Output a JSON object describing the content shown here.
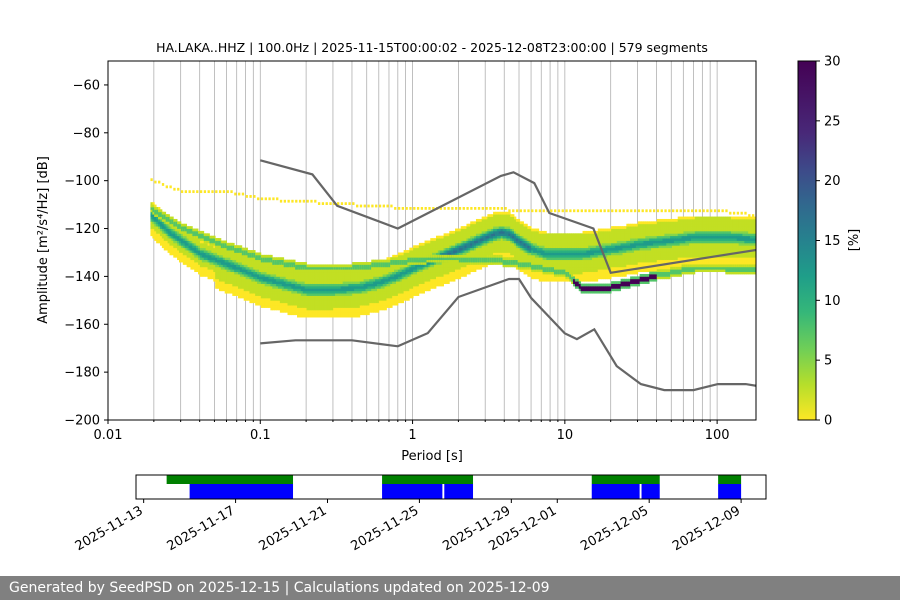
{
  "chart_data": [
    {
      "type": "heatmap",
      "title": "HA.LAKA..HHZ | 100.0Hz | 2025-11-15T00:00:02 - 2025-12-08T23:00:00 | 579 segments",
      "xlabel": "Period [s]",
      "ylabel": "Amplitude [m²/s⁴/Hz] [dB]",
      "x_scale": "log",
      "xlim": [
        0.01,
        180
      ],
      "ylim": [
        -200,
        -50
      ],
      "x_ticks": [
        0.01,
        0.1,
        1,
        10,
        100
      ],
      "x_tick_labels": [
        "0.01",
        "0.1",
        "1",
        "10",
        "100"
      ],
      "y_ticks": [
        -200,
        -180,
        -160,
        -140,
        -120,
        -100,
        -80,
        -60
      ],
      "y_tick_labels": [
        "−200",
        "−180",
        "−160",
        "−140",
        "−120",
        "−100",
        "−80",
        "−60"
      ],
      "grid": true,
      "colormap": "viridis_r",
      "colorbar": {
        "label": "[%]",
        "range": [
          0,
          30
        ],
        "ticks": [
          0,
          5,
          10,
          15,
          20,
          25,
          30
        ],
        "tick_labels": [
          "0",
          "5",
          "10",
          "15",
          "20",
          "25",
          "30"
        ]
      },
      "noise_models": [
        {
          "name": "NHNM",
          "color": "#666666",
          "x": [
            0.1,
            0.22,
            0.32,
            0.8,
            3.8,
            4.6,
            6.3,
            7.9,
            15.4,
            20,
            354.8
          ],
          "y": [
            -91.5,
            -97.4,
            -110.5,
            -120,
            -98,
            -96.5,
            -101,
            -113.5,
            -120,
            -138.5,
            -126
          ]
        },
        {
          "name": "NLNM",
          "color": "#666666",
          "x": [
            0.1,
            0.17,
            0.4,
            0.8,
            1.26,
            2,
            4.3,
            5,
            6,
            10,
            12,
            15.6,
            21.9,
            31.6,
            45,
            70,
            101,
            154,
            180
          ],
          "y": [
            -168,
            -166.7,
            -166.7,
            -169.2,
            -163.7,
            -148.6,
            -141.1,
            -141.1,
            -149,
            -163.8,
            -166.2,
            -162.1,
            -177.5,
            -185,
            -187.5,
            -187.5,
            -185,
            -185,
            -185.7
          ]
        }
      ],
      "psd_bands": [
        {
          "name": "main",
          "x": [
            0.019,
            0.025,
            0.04,
            0.07,
            0.1,
            0.15,
            0.2,
            0.3,
            0.45,
            0.6,
            0.8,
            1.0,
            1.3,
            1.7,
            2.2,
            2.8,
            3.3,
            3.8,
            4.3,
            5.0,
            6.0,
            7.5,
            9.0,
            11,
            13,
            16,
            20,
            25,
            30,
            40,
            55,
            70,
            90,
            120,
            180
          ],
          "y": [
            -115,
            -122,
            -131,
            -137,
            -141,
            -144,
            -146,
            -146,
            -145,
            -143,
            -140,
            -137,
            -134,
            -131,
            -128,
            -125,
            -123,
            -122,
            -123,
            -126,
            -129,
            -131,
            -131,
            -131,
            -131,
            -130,
            -129,
            -128,
            -127,
            -126,
            -125,
            -124,
            -124,
            -124,
            -125
          ]
        },
        {
          "name": "secondary",
          "x": [
            0.019,
            0.03,
            0.06,
            0.1,
            0.2,
            0.4,
            0.7,
            1.2,
            2,
            3.8,
            6,
            10,
            13,
            20,
            40,
            70,
            110,
            180
          ],
          "y": [
            -112,
            -120,
            -128,
            -133,
            -137,
            -137,
            -135,
            -133,
            -133,
            -134,
            -136,
            -139,
            -146,
            -145,
            -140,
            -137,
            -137,
            -138
          ]
        },
        {
          "name": "high-noise",
          "x": [
            0.019,
            0.03,
            0.06,
            0.1,
            0.3,
            1,
            3,
            6,
            10,
            20,
            40,
            100,
            180
          ],
          "y": [
            -100,
            -105,
            -105,
            -108,
            -110,
            -112,
            -112,
            -113,
            -113,
            -113,
            -113,
            -113,
            -115
          ]
        }
      ]
    },
    {
      "type": "timeline",
      "tick_labels": [
        "2025-11-13",
        "2025-11-17",
        "2025-11-21",
        "2025-11-25",
        "2025-11-29",
        "2025-12-01",
        "2025-12-05",
        "2025-12-09"
      ],
      "tick_dates": [
        "2025-11-13",
        "2025-11-17",
        "2025-11-21",
        "2025-11-25",
        "2025-11-29",
        "2025-12-01",
        "2025-12-05",
        "2025-12-09"
      ],
      "xlim": [
        "2025-11-12T16:00",
        "2025-12-10T02:00"
      ],
      "data_available": {
        "color": "#008000",
        "intervals": [
          [
            "2025-11-14T00:00",
            "2025-11-19T12:00"
          ],
          [
            "2025-11-23T09:00",
            "2025-11-27T08:00"
          ],
          [
            "2025-12-02T12:00",
            "2025-12-05T11:00"
          ],
          [
            "2025-12-08T00:00",
            "2025-12-09T00:00"
          ]
        ]
      },
      "psd_used": {
        "color": "#0000ff",
        "intervals": [
          [
            "2025-11-15T00:00",
            "2025-11-19T12:00"
          ],
          [
            "2025-11-23T09:00",
            "2025-11-26T00:00"
          ],
          [
            "2025-11-26T02:00",
            "2025-11-27T08:00"
          ],
          [
            "2025-12-02T12:00",
            "2025-12-04T14:00"
          ],
          [
            "2025-12-04T16:00",
            "2025-12-05T11:00"
          ],
          [
            "2025-12-08T00:00",
            "2025-12-09T00:00"
          ]
        ]
      }
    }
  ],
  "footer": "Generated by SeedPSD on 2025-12-15 | Calculations updated on 2025-12-09"
}
